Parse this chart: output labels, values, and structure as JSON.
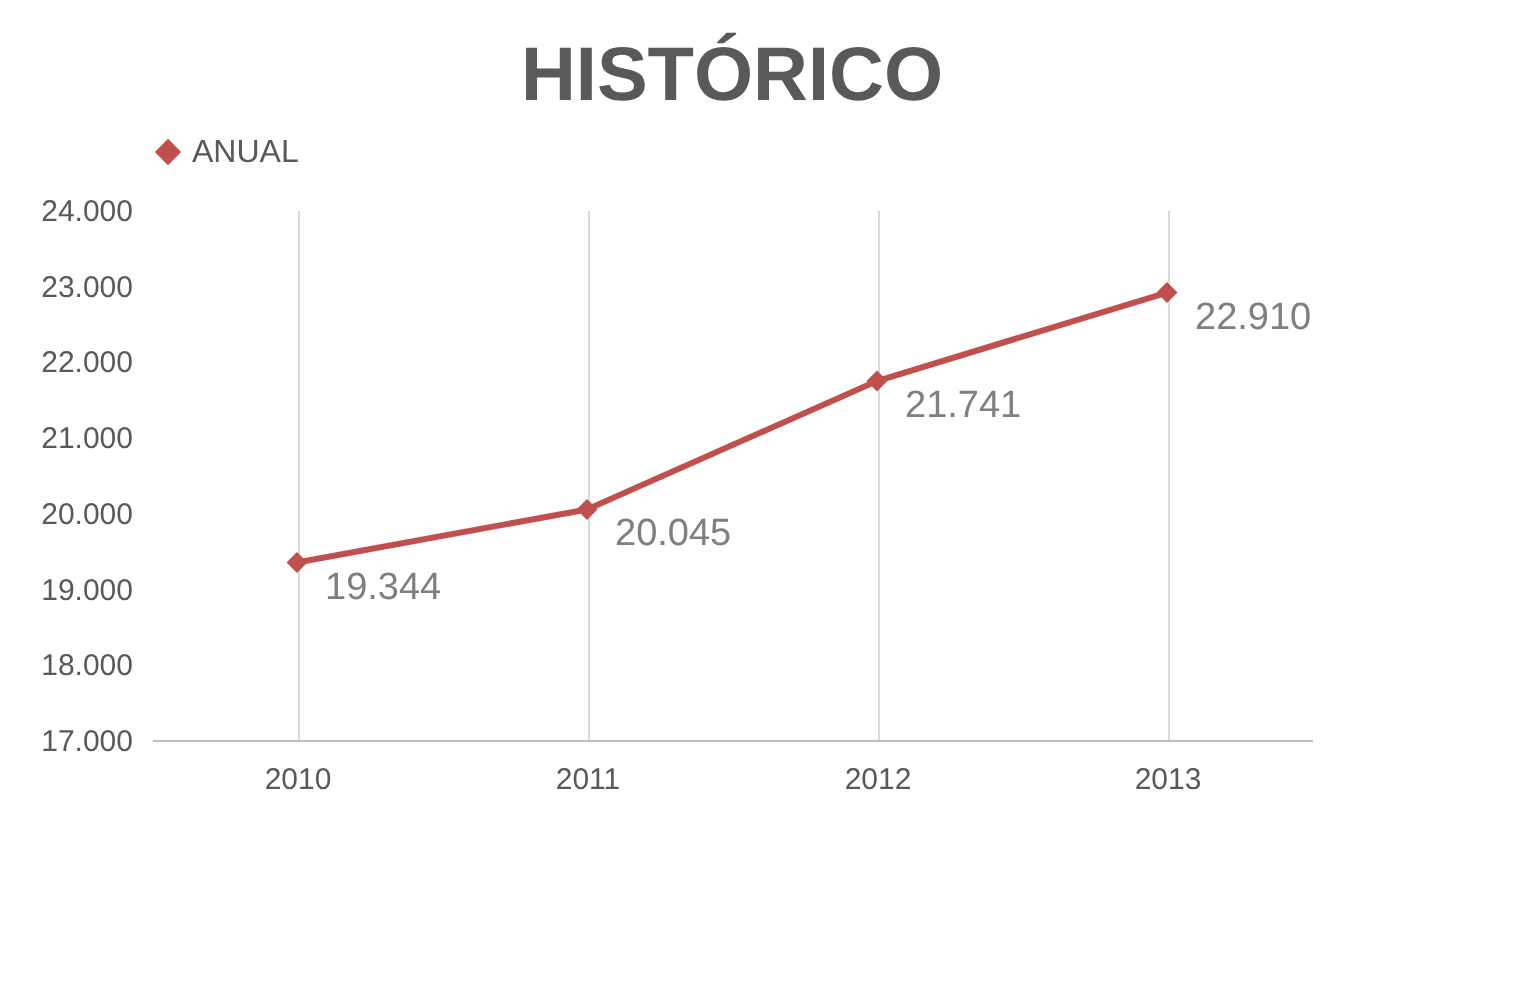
{
  "chart_data": {
    "type": "line",
    "title": "HISTÓRICO",
    "categories": [
      "2010",
      "2011",
      "2012",
      "2013"
    ],
    "series": [
      {
        "name": "ANUAL",
        "color": "#c0504d",
        "values": [
          19344,
          20045,
          21741,
          22910
        ],
        "value_labels": [
          "19.344",
          "20.045",
          "21.741",
          "22.910"
        ]
      }
    ],
    "ylim": [
      17000,
      24000
    ],
    "yticks": [
      {
        "value": 17000,
        "label": "17.000"
      },
      {
        "value": 18000,
        "label": "18.000"
      },
      {
        "value": 19000,
        "label": "19.000"
      },
      {
        "value": 20000,
        "label": "20.000"
      },
      {
        "value": 21000,
        "label": "21.000"
      },
      {
        "value": 22000,
        "label": "22.000"
      },
      {
        "value": 23000,
        "label": "23.000"
      },
      {
        "value": 24000,
        "label": "24.000"
      }
    ],
    "grid": "x",
    "legend": "top",
    "marker": "diamond",
    "line_style": "solid"
  }
}
